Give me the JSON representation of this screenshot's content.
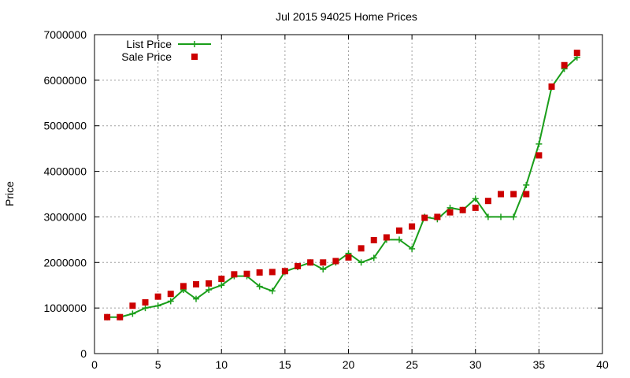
{
  "chart_data": {
    "type": "line",
    "title": "Jul 2015 94025 Home Prices",
    "xlabel": "",
    "ylabel": "Price",
    "xlim": [
      0,
      40
    ],
    "ylim": [
      0,
      7000000
    ],
    "x_ticks": [
      0,
      5,
      10,
      15,
      20,
      25,
      30,
      35,
      40
    ],
    "y_ticks": [
      0,
      1000000,
      2000000,
      3000000,
      4000000,
      5000000,
      6000000,
      7000000
    ],
    "grid": true,
    "legend_position": "top-left",
    "series": [
      {
        "name": "List Price",
        "style": "line-plus",
        "color": "#1a9e1a",
        "x": [
          1,
          2,
          3,
          4,
          5,
          6,
          7,
          8,
          9,
          10,
          11,
          12,
          13,
          14,
          15,
          16,
          17,
          18,
          19,
          20,
          21,
          22,
          23,
          24,
          25,
          26,
          27,
          28,
          29,
          30,
          31,
          32,
          33,
          34,
          35,
          36,
          37,
          38
        ],
        "values": [
          800000,
          800000,
          875000,
          1000000,
          1050000,
          1150000,
          1400000,
          1200000,
          1400000,
          1500000,
          1700000,
          1700000,
          1475000,
          1375000,
          1800000,
          1900000,
          2000000,
          1850000,
          2000000,
          2200000,
          2000000,
          2100000,
          2500000,
          2500000,
          2300000,
          3000000,
          2950000,
          3200000,
          3150000,
          3400000,
          3000000,
          3000000,
          3000000,
          3700000,
          4600000,
          5850000,
          6250000,
          6500000
        ]
      },
      {
        "name": "Sale Price",
        "style": "square-markers",
        "color": "#cc0000",
        "x": [
          1,
          2,
          3,
          4,
          5,
          6,
          7,
          8,
          9,
          10,
          11,
          12,
          13,
          14,
          15,
          16,
          17,
          18,
          19,
          20,
          21,
          22,
          23,
          24,
          25,
          26,
          27,
          28,
          29,
          30,
          31,
          32,
          33,
          34,
          35,
          36,
          37,
          38
        ],
        "values": [
          800000,
          800000,
          1050000,
          1125000,
          1250000,
          1310000,
          1480000,
          1520000,
          1540000,
          1640000,
          1740000,
          1750000,
          1780000,
          1790000,
          1810000,
          1920000,
          2000000,
          2000000,
          2030000,
          2110000,
          2310000,
          2490000,
          2550000,
          2700000,
          2790000,
          2980000,
          3000000,
          3100000,
          3150000,
          3200000,
          3350000,
          3500000,
          3500000,
          3500000,
          4350000,
          5860000,
          6330000,
          6600000
        ]
      }
    ]
  }
}
